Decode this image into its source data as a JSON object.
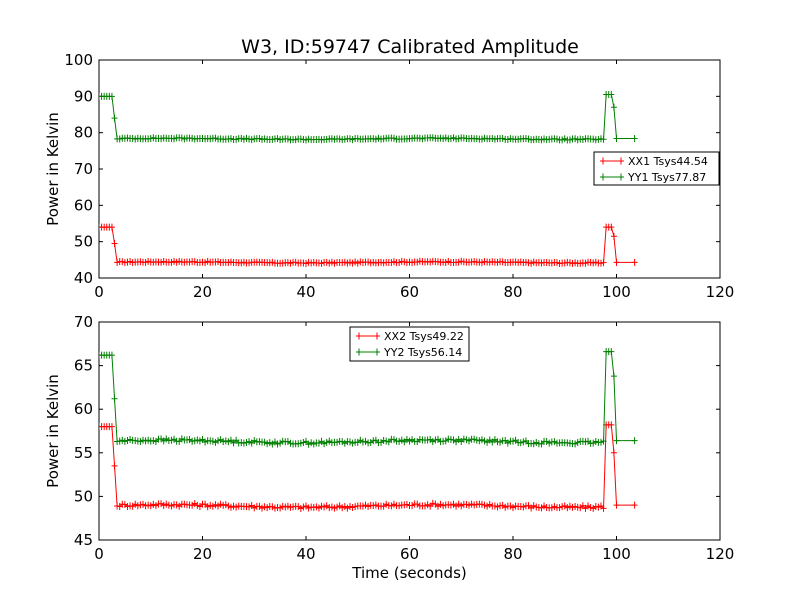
{
  "title": "W3, ID:59747 Calibrated Amplitude",
  "colors": {
    "red": "#ff0000",
    "green": "#008000",
    "axes": "#000000",
    "background": "#ffffff"
  },
  "chart_data": [
    {
      "type": "line",
      "ylabel": "Power in Kelvin",
      "xlabel": "",
      "xlim": [
        0,
        120
      ],
      "ylim": [
        40,
        100
      ],
      "xticks": [
        "0",
        "20",
        "40",
        "60",
        "80",
        "100",
        "120"
      ],
      "yticks": [
        "40",
        "50",
        "60",
        "70",
        "80",
        "90",
        "100"
      ],
      "grid": false,
      "legend_position": "center-right",
      "series": [
        {
          "name": "XX1 Tsys44.54",
          "color": "#ff0000",
          "x": [
            0,
            0.5,
            1,
            1.5,
            2,
            2.5,
            3,
            3.5,
            4,
            98,
            98.5,
            99,
            99.5,
            100,
            103.5
          ],
          "y": [
            54,
            54,
            54,
            54,
            54,
            54,
            49.5,
            44.3,
            44.3,
            54,
            54,
            54,
            51.5,
            44.3,
            44.3
          ]
        },
        {
          "name": "YY1 Tsys77.87",
          "color": "#008000",
          "x": [
            0,
            0.5,
            1,
            1.5,
            2,
            2.5,
            3,
            3.5,
            4,
            98,
            98.5,
            99,
            99.5,
            100,
            103.5
          ],
          "y": [
            90,
            90,
            90,
            90,
            90,
            90,
            84,
            78.3,
            78.3,
            90.5,
            90.5,
            90.5,
            87,
            78.4,
            78.4
          ]
        }
      ]
    },
    {
      "type": "line",
      "ylabel": "Power in Kelvin",
      "xlabel": "Time (seconds)",
      "xlim": [
        0,
        120
      ],
      "ylim": [
        45,
        70
      ],
      "xticks": [
        "0",
        "20",
        "40",
        "60",
        "80",
        "100",
        "120"
      ],
      "yticks": [
        "45",
        "50",
        "55",
        "60",
        "65",
        "70"
      ],
      "grid": false,
      "legend_position": "top-center",
      "series": [
        {
          "name": "XX2 Tsys49.22",
          "color": "#ff0000",
          "x": [
            0,
            0.5,
            1,
            1.5,
            2,
            2.5,
            3,
            3.5,
            4,
            98,
            98.5,
            99,
            99.5,
            100,
            103.5
          ],
          "y": [
            58,
            58,
            58,
            58,
            58,
            58,
            53.5,
            48.9,
            48.9,
            58.2,
            58.2,
            58.2,
            55,
            49,
            49
          ]
        },
        {
          "name": "YY2 Tsys56.14",
          "color": "#008000",
          "x": [
            0,
            0.5,
            1,
            1.5,
            2,
            2.5,
            3,
            3.5,
            4,
            98,
            98.5,
            99,
            99.5,
            100,
            103.5
          ],
          "y": [
            66.2,
            66.2,
            66.2,
            66.2,
            66.2,
            66.2,
            61.2,
            56.3,
            56.3,
            66.6,
            66.6,
            66.6,
            63.8,
            56.4,
            56.4
          ]
        }
      ]
    }
  ]
}
